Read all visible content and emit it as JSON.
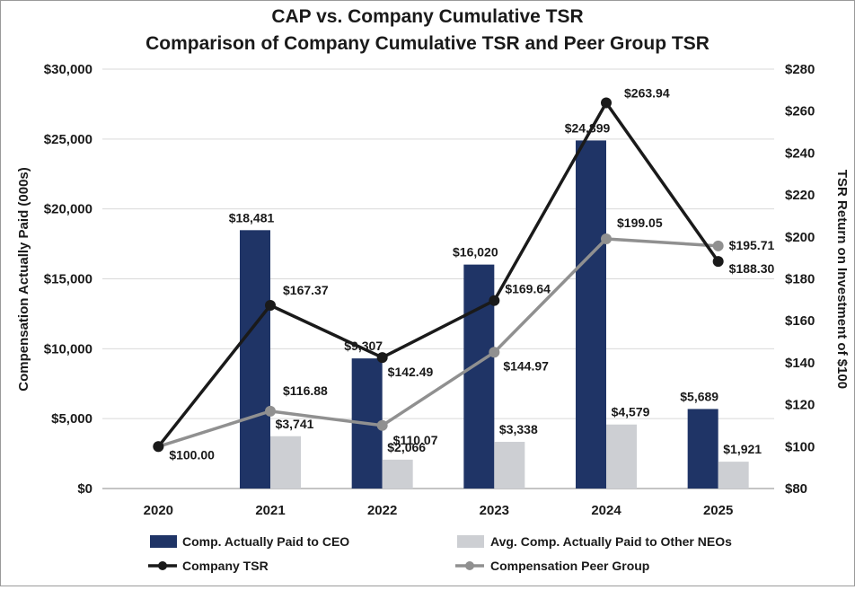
{
  "chart_data": {
    "type": "bar+line",
    "title_line1": "CAP vs. Company Cumulative TSR",
    "title_line2": "Comparison of Company Cumulative TSR and Peer Group TSR",
    "categories": [
      "2020",
      "2021",
      "2022",
      "2023",
      "2024",
      "2025"
    ],
    "ylabel_left": "Compensation Actually Paid (000s)",
    "ylabel_right": "TSR Return on Investment of $100",
    "ylim_left": [
      0,
      30000
    ],
    "ylim_right": [
      80,
      280
    ],
    "left_ticks": [
      "$0",
      "$5,000",
      "$10,000",
      "$15,000",
      "$20,000",
      "$25,000",
      "$30,000"
    ],
    "right_ticks": [
      "$80",
      "$100",
      "$120",
      "$140",
      "$160",
      "$180",
      "$200",
      "$220",
      "$240",
      "$260",
      "$280"
    ],
    "bar_series": [
      {
        "name": "Comp. Actually Paid to CEO",
        "color": "#1f3466",
        "values": [
          null,
          18481,
          9307,
          16020,
          24899,
          5689
        ],
        "labels": [
          "",
          "$18,481",
          "$9,307",
          "$16,020",
          "$24,899",
          "$5,689"
        ]
      },
      {
        "name": "Avg. Comp. Actually Paid to Other NEOs",
        "color": "#cdcfd3",
        "values": [
          null,
          3741,
          2066,
          3338,
          4579,
          1921
        ],
        "labels": [
          "",
          "$3,741",
          "$2,066",
          "$3,338",
          "$4,579",
          "$1,921"
        ]
      }
    ],
    "line_series": [
      {
        "name": "Company TSR",
        "color": "#1a1a1a",
        "values": [
          100.0,
          167.37,
          142.49,
          169.64,
          263.94,
          188.3
        ],
        "labels": [
          "$100.00",
          "$167.37",
          "$142.49",
          "$169.64",
          "$263.94",
          "$188.30"
        ]
      },
      {
        "name": "Compensation Peer Group",
        "color": "#909090",
        "values": [
          100.0,
          116.88,
          110.07,
          144.97,
          199.05,
          195.71
        ],
        "labels": [
          "",
          "$116.88",
          "$110.07",
          "$144.97",
          "$199.05",
          "$195.71"
        ]
      }
    ],
    "legend": {
      "position": "bottom",
      "items": [
        "Comp. Actually Paid to CEO",
        "Avg. Comp. Actually Paid to Other NEOs",
        "Company TSR",
        "Compensation Peer Group"
      ]
    }
  }
}
